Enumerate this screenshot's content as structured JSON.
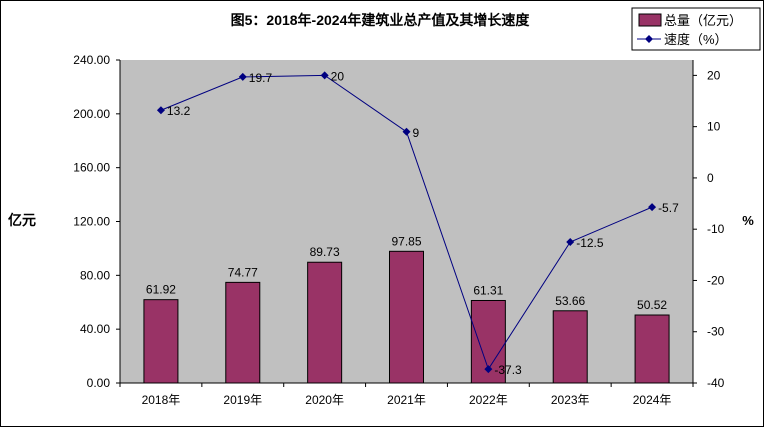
{
  "chart_data": {
    "type": "bar+line",
    "title": "图5：2018年-2024年建筑业总产值及其增长速度",
    "categories": [
      "2018年",
      "2019年",
      "2020年",
      "2021年",
      "2022年",
      "2023年",
      "2024年"
    ],
    "series": [
      {
        "name": "总量（亿元）",
        "type": "bar",
        "axis": "left",
        "values": [
          61.92,
          74.77,
          89.73,
          97.85,
          61.31,
          53.66,
          50.52
        ],
        "labels": [
          "61.92",
          "74.77",
          "89.73",
          "97.85",
          "61.31",
          "53.66",
          "50.52"
        ],
        "color": "#993366"
      },
      {
        "name": "速度（%）",
        "type": "line",
        "axis": "right",
        "values": [
          13.2,
          19.7,
          20,
          9,
          -37.3,
          -12.5,
          -5.7
        ],
        "labels": [
          "13.2",
          "19.7",
          "20",
          "9",
          "-37.3",
          "-12.5",
          "-5.7"
        ],
        "color": "#000080"
      }
    ],
    "ylabel": "亿元",
    "y2label": "%",
    "ylim": [
      0,
      240
    ],
    "y2lim": [
      -40,
      23
    ],
    "yticks": [
      "0.00",
      "40.00",
      "80.00",
      "120.00",
      "160.00",
      "200.00",
      "240.00"
    ],
    "y2ticks": [
      "-40",
      "-30",
      "-20",
      "-10",
      "0",
      "10",
      "20"
    ],
    "legend": "top-right",
    "plot_bg": "#C0C0C0"
  }
}
